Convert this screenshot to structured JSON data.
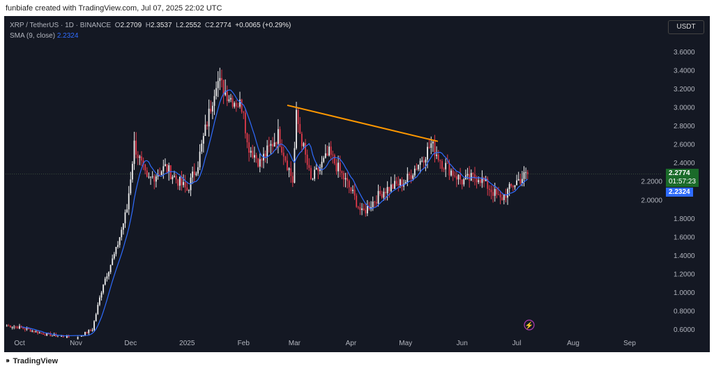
{
  "credit": "funbiafe created with TradingView.com, Jul 07, 2025 22:02 UTC",
  "legend": {
    "symbol": "XRP / TetherUS · 1D · BINANCE",
    "o_label": "O",
    "o": "2.2709",
    "h_label": "H",
    "h": "2.3537",
    "l_label": "L",
    "l": "2.2552",
    "c_label": "C",
    "c": "2.2774",
    "change": "+0.0065 (+0.29%)",
    "sma_label": "SMA (9, close)",
    "sma_value": "2.2324"
  },
  "currency_button": "USDT",
  "last_price_tag": "2.2774",
  "countdown": "01:57:23",
  "sma_tag": "2.2324",
  "footer": "TradingView",
  "colors": {
    "up": "#f0f0f0",
    "down": "#e03a4a",
    "sma": "#2f6cff",
    "trend": "#ff9800",
    "price_tag": "#1b6b2a"
  },
  "chart_data": {
    "type": "candlestick",
    "title": "XRP / TetherUS 1D",
    "y_ticks": [
      "3.6000",
      "3.4000",
      "3.2000",
      "3.0000",
      "2.8000",
      "2.6000",
      "2.4000",
      "2.2000",
      "2.0000",
      "1.8000",
      "1.6000",
      "1.4000",
      "1.2000",
      "1.0000",
      "0.8000",
      "0.6000"
    ],
    "x_ticks": [
      "Oct",
      "Nov",
      "Dec",
      "2025",
      "Feb",
      "Mar",
      "Apr",
      "May",
      "Jun",
      "Jul",
      "Aug",
      "Sep"
    ],
    "ylim": [
      0.55,
      3.75
    ],
    "close_path_days_from_oct1": [
      [
        -7,
        0.64
      ],
      [
        0,
        0.62
      ],
      [
        15,
        0.54
      ],
      [
        31,
        0.5
      ],
      [
        40,
        0.6
      ],
      [
        46,
        1.1
      ],
      [
        53,
        1.45
      ],
      [
        59,
        1.9
      ],
      [
        63,
        2.6
      ],
      [
        70,
        2.2
      ],
      [
        80,
        2.35
      ],
      [
        92,
        2.1
      ],
      [
        98,
        2.4
      ],
      [
        106,
        3.1
      ],
      [
        108,
        3.3
      ],
      [
        116,
        3.1
      ],
      [
        123,
        3.0
      ],
      [
        125,
        2.6
      ],
      [
        132,
        2.4
      ],
      [
        142,
        2.7
      ],
      [
        150,
        2.2
      ],
      [
        152,
        2.9
      ],
      [
        160,
        2.2
      ],
      [
        170,
        2.5
      ],
      [
        182,
        2.1
      ],
      [
        188,
        1.85
      ],
      [
        200,
        2.1
      ],
      [
        212,
        2.2
      ],
      [
        223,
        2.5
      ],
      [
        226,
        2.6
      ],
      [
        232,
        2.4
      ],
      [
        243,
        2.2
      ],
      [
        252,
        2.25
      ],
      [
        264,
        2.0
      ],
      [
        273,
        2.2
      ],
      [
        279,
        2.2774
      ]
    ],
    "sma_period": 9,
    "trendline": {
      "from": [
        "2025-02-25",
        3.02
      ],
      "to": [
        "2025-05-18",
        2.63
      ]
    },
    "last_close": 2.2774,
    "last_sma": 2.2324
  }
}
